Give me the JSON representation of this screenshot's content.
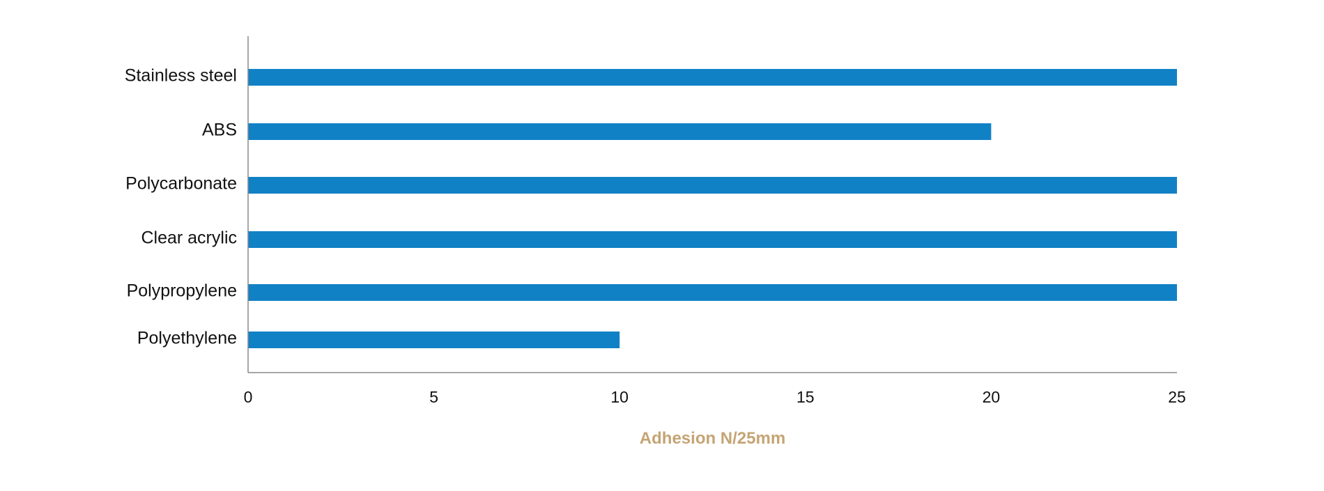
{
  "chart_data": {
    "type": "bar",
    "orientation": "horizontal",
    "categories": [
      "Stainless steel",
      "ABS",
      "Polycarbonate",
      "Clear acrylic",
      "Polypropylene",
      "Polyethylene"
    ],
    "values": [
      25,
      20,
      25,
      25,
      25,
      10
    ],
    "title": "",
    "xlabel": "Adhesion N/25mm",
    "ylabel": "",
    "xlim": [
      0,
      25
    ],
    "xticks": [
      0,
      5,
      10,
      15,
      20,
      25
    ],
    "grid": false,
    "legend": "none",
    "colors": {
      "bar": "#1181c6",
      "axis_title": "#c5a474",
      "axis_line": "#888888"
    }
  }
}
